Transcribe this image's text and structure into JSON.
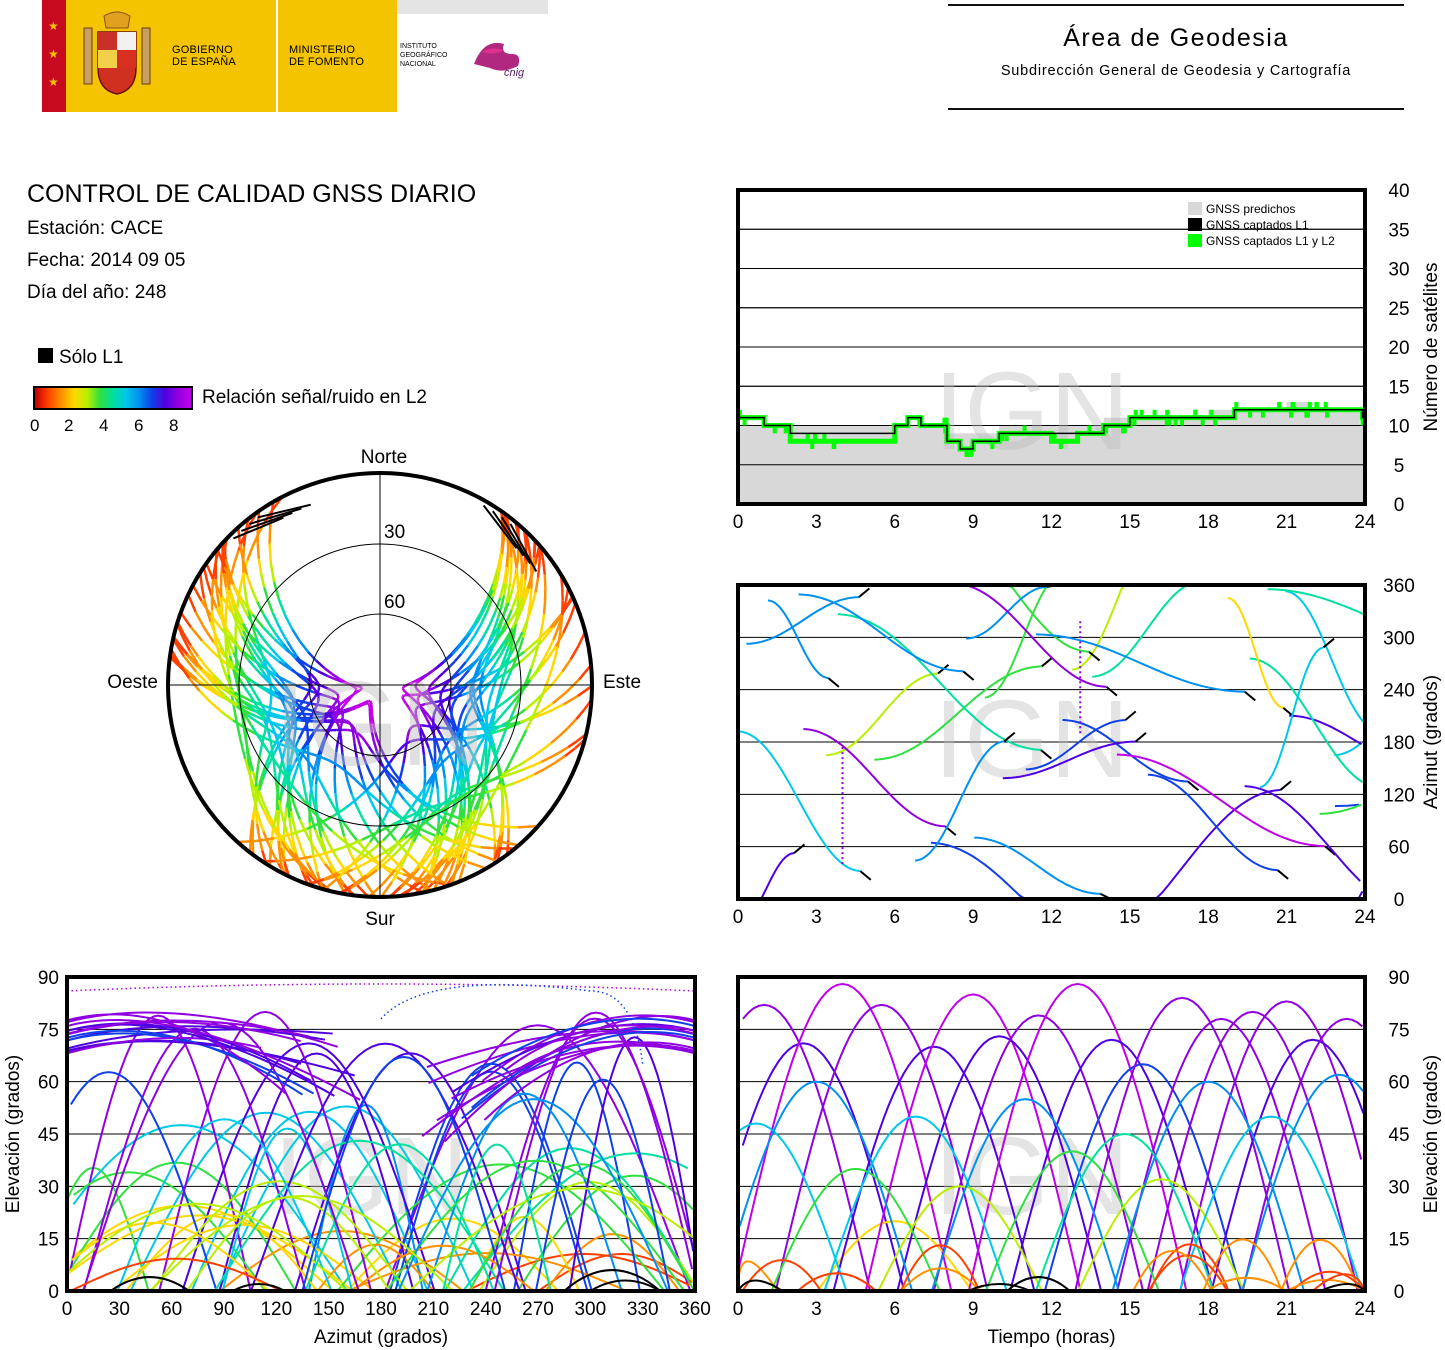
{
  "header": {
    "gov_line1": "GOBIERNO",
    "gov_line2": "DE ESPAÑA",
    "ministry_line1": "MINISTERIO",
    "ministry_line2": "DE FOMENTO",
    "institute_line1": "INSTITUTO",
    "institute_line2": "GEOGRÁFICO",
    "institute_line3": "NACIONAL",
    "cnig": "cnig",
    "area_title": "Área de Geodesia",
    "area_subtitle": "Subdirección General de Geodesia y Cartografía"
  },
  "report": {
    "title": "CONTROL DE CALIDAD GNSS DIARIO",
    "station": "Estación: CACE",
    "date": "Fecha: 2014 09 05",
    "doy": "Día del año: 248"
  },
  "legend": {
    "l1_only": "Sólo L1",
    "snr_label": "Relación señal/ruido en L2",
    "colorbar_ticks": [
      "0",
      "2",
      "4",
      "6",
      "8"
    ]
  },
  "colors": {
    "predicted": "#d8d8d8",
    "l1": "#000000",
    "l1l2": "#00ff00",
    "snr_scale": [
      "#c00000",
      "#ff4000",
      "#ff9000",
      "#ffd800",
      "#b8f000",
      "#30e040",
      "#00e0a0",
      "#00c8e8",
      "#0090f0",
      "#1040e8",
      "#5000e0",
      "#9000e0",
      "#c000e8"
    ]
  },
  "watermark": "IGN",
  "chart_data": [
    {
      "id": "skyplot",
      "type": "scatter",
      "projection": "polar",
      "directions": {
        "north": "Norte",
        "south": "Sur",
        "west": "Oeste",
        "east": "Este"
      },
      "elevation_rings": [
        "30",
        "60"
      ],
      "note_series": "satellite tracks colored by SNR on L2"
    },
    {
      "id": "satellite-count",
      "type": "area",
      "ylabel": "Número de satélites",
      "xlim": [
        0,
        24
      ],
      "ylim": [
        0,
        40
      ],
      "xticks": [
        "0",
        "3",
        "6",
        "9",
        "12",
        "15",
        "18",
        "21",
        "24"
      ],
      "yticks": [
        "0",
        "5",
        "10",
        "15",
        "20",
        "25",
        "30",
        "35",
        "40"
      ],
      "legend_position": "top-right",
      "series": [
        {
          "name": "GNSS predichos",
          "x": [
            0,
            3,
            6,
            8,
            10,
            12,
            13,
            14,
            15,
            16,
            17,
            18,
            19,
            20,
            21,
            22,
            23,
            23.8,
            24
          ],
          "values": [
            10,
            10,
            10,
            9,
            10,
            10,
            10,
            11,
            11,
            11,
            11,
            12,
            12,
            12,
            13,
            12,
            12,
            10,
            10
          ]
        },
        {
          "name": "GNSS captados L1",
          "x": [
            0,
            0.5,
            1,
            2,
            3,
            4,
            5,
            6,
            6.5,
            7,
            8,
            8.5,
            9,
            9.5,
            10,
            11,
            12,
            13,
            13.5,
            14,
            14.5,
            15,
            16,
            17,
            18,
            19,
            20,
            21,
            22,
            23,
            23.5,
            23.9,
            24
          ],
          "values": [
            11,
            11,
            10,
            9,
            9,
            9,
            9,
            10,
            11,
            10,
            8,
            7,
            8,
            8,
            9,
            9,
            9,
            9,
            9,
            10,
            10,
            11,
            11,
            11,
            11,
            12,
            12,
            12,
            12,
            12,
            12,
            11,
            11
          ]
        },
        {
          "name": "GNSS captados L1 y L2",
          "x": [
            0,
            0.5,
            1,
            2,
            3,
            4,
            5,
            6,
            6.5,
            7,
            8,
            8.5,
            9,
            9.5,
            10,
            11,
            12,
            13,
            13.5,
            14,
            14.5,
            15,
            16,
            17,
            18,
            19,
            20,
            21,
            22,
            23,
            23.5,
            23.9,
            24
          ],
          "values": [
            11,
            11,
            10,
            8,
            8,
            8,
            8,
            10,
            11,
            10,
            8,
            7,
            8,
            8,
            9,
            9,
            8,
            9,
            9,
            10,
            10,
            11,
            11,
            11,
            11,
            12,
            12,
            12,
            12,
            12,
            12,
            11,
            11
          ]
        }
      ]
    },
    {
      "id": "azimuth-time",
      "type": "scatter",
      "ylabel": "Azimut (grados)",
      "xlim": [
        0,
        24
      ],
      "ylim": [
        0,
        360
      ],
      "xticks": [
        "0",
        "3",
        "6",
        "9",
        "12",
        "15",
        "18",
        "21",
        "24"
      ],
      "yticks": [
        "0",
        "60",
        "120",
        "180",
        "240",
        "300",
        "360"
      ]
    },
    {
      "id": "elevation-azimuth",
      "type": "scatter",
      "xlabel": "Azimut (grados)",
      "ylabel": "Elevación (grados)",
      "xlim": [
        0,
        360
      ],
      "ylim": [
        0,
        90
      ],
      "xticks": [
        "0",
        "30",
        "60",
        "90",
        "120",
        "150",
        "180",
        "210",
        "240",
        "270",
        "300",
        "330",
        "360"
      ],
      "yticks": [
        "0",
        "15",
        "30",
        "45",
        "60",
        "75",
        "90"
      ]
    },
    {
      "id": "elevation-time",
      "type": "scatter",
      "xlabel": "Tiempo (horas)",
      "ylabel": "Elevación (grados)",
      "xlim": [
        0,
        24
      ],
      "ylim": [
        0,
        90
      ],
      "xticks": [
        "0",
        "3",
        "6",
        "9",
        "12",
        "15",
        "18",
        "21",
        "24"
      ],
      "yticks": [
        "0",
        "15",
        "30",
        "45",
        "60",
        "75",
        "90"
      ],
      "peaks": [
        {
          "t": 1.0,
          "e": 82
        },
        {
          "t": 2.5,
          "e": 71
        },
        {
          "t": 4.0,
          "e": 88
        },
        {
          "t": 5.5,
          "e": 82
        },
        {
          "t": 6.0,
          "e": 20
        },
        {
          "t": 7.5,
          "e": 70
        },
        {
          "t": 9.0,
          "e": 85
        },
        {
          "t": 10.0,
          "e": 73
        },
        {
          "t": 11.5,
          "e": 79
        },
        {
          "t": 13.0,
          "e": 88
        },
        {
          "t": 14.3,
          "e": 72
        },
        {
          "t": 15.5,
          "e": 65
        },
        {
          "t": 17.0,
          "e": 84
        },
        {
          "t": 18.5,
          "e": 78
        },
        {
          "t": 19.7,
          "e": 80
        },
        {
          "t": 21.0,
          "e": 83
        },
        {
          "t": 22.0,
          "e": 72
        },
        {
          "t": 23.3,
          "e": 78
        },
        {
          "t": 0.7,
          "e": 48
        },
        {
          "t": 3.0,
          "e": 60
        },
        {
          "t": 4.5,
          "e": 35
        },
        {
          "t": 6.8,
          "e": 50
        },
        {
          "t": 8.5,
          "e": 30
        },
        {
          "t": 11.0,
          "e": 55
        },
        {
          "t": 12.8,
          "e": 40
        },
        {
          "t": 14.8,
          "e": 45
        },
        {
          "t": 16.2,
          "e": 32
        },
        {
          "t": 18.0,
          "e": 60
        },
        {
          "t": 20.4,
          "e": 50
        },
        {
          "t": 23.0,
          "e": 62
        }
      ]
    }
  ]
}
